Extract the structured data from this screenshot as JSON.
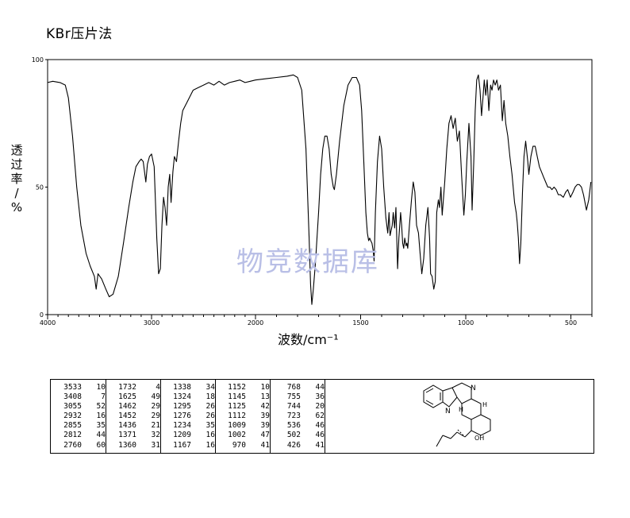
{
  "header": {
    "title": "KBr压片法"
  },
  "watermark": "物竞数据库",
  "chart_data": {
    "type": "line",
    "title": "KBr压片法",
    "xlabel": "波数/cm⁻¹",
    "ylabel": "透过率/%",
    "ylabel_chars": [
      "透",
      "过",
      "率",
      "/",
      "%"
    ],
    "xlim": [
      4000,
      400
    ],
    "ylim": [
      0,
      100
    ],
    "x_ticks": [
      4000,
      3000,
      2000,
      1500,
      1000,
      500
    ],
    "y_ticks": [
      0,
      50,
      100
    ],
    "grid": false,
    "series": [
      {
        "values": [
          [
            4000,
            91
          ],
          [
            3950,
            91.5
          ],
          [
            3880,
            91
          ],
          [
            3830,
            90
          ],
          [
            3800,
            85
          ],
          [
            3760,
            70
          ],
          [
            3720,
            50
          ],
          [
            3680,
            35
          ],
          [
            3630,
            24
          ],
          [
            3590,
            19
          ],
          [
            3550,
            15
          ],
          [
            3533,
            10
          ],
          [
            3515,
            16
          ],
          [
            3480,
            14
          ],
          [
            3440,
            10
          ],
          [
            3408,
            7
          ],
          [
            3370,
            8
          ],
          [
            3320,
            15
          ],
          [
            3270,
            28
          ],
          [
            3220,
            42
          ],
          [
            3180,
            52
          ],
          [
            3150,
            58
          ],
          [
            3120,
            60
          ],
          [
            3100,
            61
          ],
          [
            3080,
            60
          ],
          [
            3055,
            52
          ],
          [
            3040,
            59
          ],
          [
            3020,
            62
          ],
          [
            3000,
            63
          ],
          [
            2975,
            58
          ],
          [
            2950,
            30
          ],
          [
            2932,
            16
          ],
          [
            2915,
            18
          ],
          [
            2900,
            35
          ],
          [
            2885,
            46
          ],
          [
            2870,
            42
          ],
          [
            2855,
            35
          ],
          [
            2840,
            50
          ],
          [
            2825,
            55
          ],
          [
            2812,
            44
          ],
          [
            2795,
            56
          ],
          [
            2780,
            62
          ],
          [
            2760,
            60
          ],
          [
            2740,
            68
          ],
          [
            2720,
            75
          ],
          [
            2700,
            80
          ],
          [
            2650,
            84
          ],
          [
            2600,
            88
          ],
          [
            2550,
            89
          ],
          [
            2500,
            90
          ],
          [
            2450,
            91
          ],
          [
            2400,
            90
          ],
          [
            2350,
            91.5
          ],
          [
            2300,
            90
          ],
          [
            2250,
            91
          ],
          [
            2200,
            91.5
          ],
          [
            2150,
            92
          ],
          [
            2100,
            91
          ],
          [
            2050,
            91.5
          ],
          [
            2000,
            92
          ],
          [
            1950,
            92.5
          ],
          [
            1900,
            93
          ],
          [
            1850,
            93.5
          ],
          [
            1820,
            94
          ],
          [
            1800,
            93
          ],
          [
            1780,
            88
          ],
          [
            1760,
            65
          ],
          [
            1745,
            30
          ],
          [
            1738,
            12
          ],
          [
            1732,
            4
          ],
          [
            1725,
            10
          ],
          [
            1715,
            20
          ],
          [
            1700,
            40
          ],
          [
            1690,
            55
          ],
          [
            1680,
            65
          ],
          [
            1670,
            70
          ],
          [
            1660,
            70
          ],
          [
            1650,
            65
          ],
          [
            1640,
            55
          ],
          [
            1630,
            50
          ],
          [
            1625,
            49
          ],
          [
            1615,
            55
          ],
          [
            1600,
            68
          ],
          [
            1580,
            82
          ],
          [
            1560,
            90
          ],
          [
            1540,
            93
          ],
          [
            1520,
            93
          ],
          [
            1505,
            90
          ],
          [
            1495,
            80
          ],
          [
            1485,
            60
          ],
          [
            1475,
            40
          ],
          [
            1468,
            32
          ],
          [
            1462,
            29
          ],
          [
            1457,
            30
          ],
          [
            1452,
            29
          ],
          [
            1446,
            28
          ],
          [
            1440,
            25
          ],
          [
            1436,
            21
          ],
          [
            1430,
            40
          ],
          [
            1420,
            60
          ],
          [
            1410,
            70
          ],
          [
            1400,
            65
          ],
          [
            1390,
            50
          ],
          [
            1380,
            38
          ],
          [
            1371,
            32
          ],
          [
            1365,
            40
          ],
          [
            1360,
            31
          ],
          [
            1350,
            35
          ],
          [
            1345,
            40
          ],
          [
            1338,
            34
          ],
          [
            1332,
            42
          ],
          [
            1324,
            18
          ],
          [
            1318,
            30
          ],
          [
            1310,
            40
          ],
          [
            1305,
            35
          ],
          [
            1300,
            28
          ],
          [
            1295,
            26
          ],
          [
            1290,
            30
          ],
          [
            1284,
            27
          ],
          [
            1280,
            28
          ],
          [
            1276,
            26
          ],
          [
            1268,
            35
          ],
          [
            1258,
            45
          ],
          [
            1250,
            52
          ],
          [
            1242,
            48
          ],
          [
            1234,
            35
          ],
          [
            1225,
            32
          ],
          [
            1218,
            25
          ],
          [
            1209,
            16
          ],
          [
            1200,
            22
          ],
          [
            1190,
            35
          ],
          [
            1180,
            42
          ],
          [
            1172,
            30
          ],
          [
            1167,
            16
          ],
          [
            1160,
            15
          ],
          [
            1152,
            10
          ],
          [
            1145,
            13
          ],
          [
            1138,
            40
          ],
          [
            1130,
            45
          ],
          [
            1125,
            42
          ],
          [
            1118,
            50
          ],
          [
            1112,
            39
          ],
          [
            1100,
            52
          ],
          [
            1090,
            65
          ],
          [
            1080,
            75
          ],
          [
            1070,
            78
          ],
          [
            1060,
            73
          ],
          [
            1050,
            77
          ],
          [
            1040,
            68
          ],
          [
            1030,
            72
          ],
          [
            1020,
            55
          ],
          [
            1009,
            39
          ],
          [
            1002,
            47
          ],
          [
            995,
            60
          ],
          [
            985,
            75
          ],
          [
            975,
            62
          ],
          [
            970,
            41
          ],
          [
            962,
            60
          ],
          [
            955,
            80
          ],
          [
            948,
            92
          ],
          [
            940,
            94
          ],
          [
            932,
            88
          ],
          [
            925,
            78
          ],
          [
            918,
            85
          ],
          [
            912,
            92
          ],
          [
            905,
            86
          ],
          [
            898,
            92
          ],
          [
            890,
            80
          ],
          [
            882,
            90
          ],
          [
            875,
            88
          ],
          [
            868,
            92
          ],
          [
            860,
            90
          ],
          [
            852,
            92
          ],
          [
            844,
            88
          ],
          [
            835,
            90
          ],
          [
            826,
            76
          ],
          [
            818,
            84
          ],
          [
            810,
            75
          ],
          [
            800,
            70
          ],
          [
            790,
            62
          ],
          [
            780,
            55
          ],
          [
            768,
            44
          ],
          [
            760,
            40
          ],
          [
            755,
            36
          ],
          [
            750,
            30
          ],
          [
            744,
            20
          ],
          [
            738,
            28
          ],
          [
            730,
            48
          ],
          [
            723,
            62
          ],
          [
            715,
            68
          ],
          [
            705,
            60
          ],
          [
            700,
            55
          ],
          [
            690,
            62
          ],
          [
            680,
            66
          ],
          [
            670,
            66
          ],
          [
            660,
            62
          ],
          [
            650,
            58
          ],
          [
            640,
            56
          ],
          [
            630,
            54
          ],
          [
            620,
            52
          ],
          [
            610,
            50
          ],
          [
            600,
            50
          ],
          [
            590,
            49
          ],
          [
            580,
            50
          ],
          [
            570,
            49
          ],
          [
            560,
            47
          ],
          [
            550,
            47
          ],
          [
            536,
            46
          ],
          [
            525,
            48
          ],
          [
            515,
            49
          ],
          [
            502,
            46
          ],
          [
            490,
            48
          ],
          [
            480,
            50
          ],
          [
            470,
            51
          ],
          [
            460,
            51
          ],
          [
            450,
            50
          ],
          [
            440,
            47
          ],
          [
            426,
            41
          ],
          [
            415,
            45
          ],
          [
            405,
            52
          ]
        ]
      }
    ]
  },
  "peak_table": [
    [
      [
        "3533",
        "10"
      ],
      [
        "3408",
        "7"
      ],
      [
        "3055",
        "52"
      ],
      [
        "2932",
        "16"
      ],
      [
        "2855",
        "35"
      ],
      [
        "2812",
        "44"
      ],
      [
        "2760",
        "60"
      ]
    ],
    [
      [
        "1732",
        "4"
      ],
      [
        "1625",
        "49"
      ],
      [
        "1462",
        "29"
      ],
      [
        "1452",
        "29"
      ],
      [
        "1436",
        "21"
      ],
      [
        "1371",
        "32"
      ],
      [
        "1360",
        "31"
      ]
    ],
    [
      [
        "1338",
        "34"
      ],
      [
        "1324",
        "18"
      ],
      [
        "1295",
        "26"
      ],
      [
        "1276",
        "26"
      ],
      [
        "1234",
        "35"
      ],
      [
        "1209",
        "16"
      ],
      [
        "1167",
        "16"
      ]
    ],
    [
      [
        "1152",
        "10"
      ],
      [
        "1145",
        "13"
      ],
      [
        "1125",
        "42"
      ],
      [
        "1112",
        "39"
      ],
      [
        "1009",
        "39"
      ],
      [
        "1002",
        "47"
      ],
      [
        "970",
        "41"
      ]
    ],
    [
      [
        "768",
        "44"
      ],
      [
        "755",
        "36"
      ],
      [
        "744",
        "20"
      ],
      [
        "723",
        "62"
      ],
      [
        "536",
        "46"
      ],
      [
        "502",
        "46"
      ],
      [
        "426",
        "41"
      ]
    ]
  ],
  "structure_labels": {
    "nh": "N",
    "h_label": "H",
    "n_label": "N",
    "oh": "OH"
  }
}
